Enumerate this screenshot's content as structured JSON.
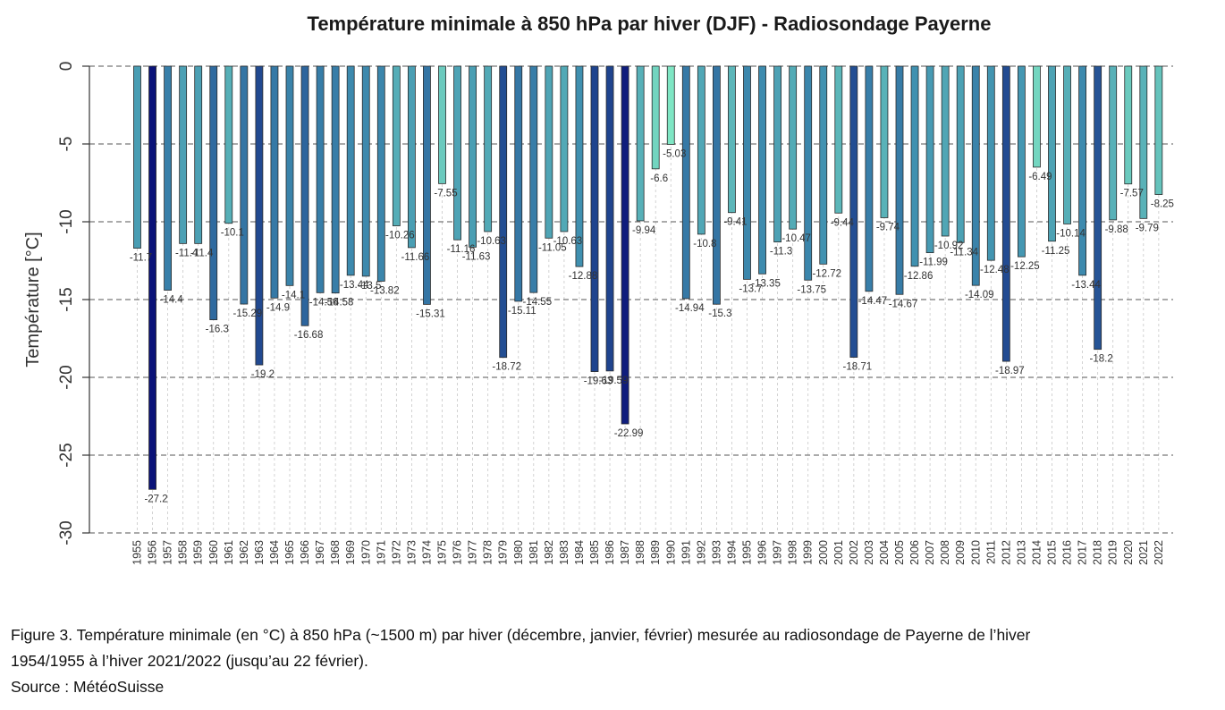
{
  "caption": {
    "line1": "Figure 3. Température minimale (en °C) à 850 hPa (~1500 m) par hiver (décembre, janvier, février) mesurée au radiosondage de Payerne de l’hiver",
    "line2": "1954/1955 à l’hiver 2021/2022 (jusqu’au 22 février).",
    "source": "Source : MétéoSuisse"
  },
  "chart_data": {
    "type": "bar",
    "title": "Température minimale à 850 hPa par hiver (DJF) - Radiosondage Payerne",
    "xlabel": "",
    "ylabel": "Température [°C]",
    "ylim": [
      -30,
      0
    ],
    "yticks": [
      0,
      -5,
      -10,
      -15,
      -20,
      -25,
      -30
    ],
    "grid": "dashed horizontal at every 5 °C, dotted vertical per bar",
    "colors": {
      "warm": "#7fe6c4",
      "mid": "#3f8fb0",
      "cold": "#0a1278"
    },
    "categories": [
      "1955",
      "1956",
      "1957",
      "1958",
      "1959",
      "1960",
      "1961",
      "1962",
      "1963",
      "1964",
      "1965",
      "1966",
      "1967",
      "1968",
      "1969",
      "1970",
      "1971",
      "1972",
      "1973",
      "1974",
      "1975",
      "1976",
      "1977",
      "1978",
      "1979",
      "1980",
      "1981",
      "1982",
      "1983",
      "1984",
      "1985",
      "1986",
      "1987",
      "1988",
      "1989",
      "1990",
      "1991",
      "1992",
      "1993",
      "1994",
      "1995",
      "1996",
      "1997",
      "1998",
      "1999",
      "2000",
      "2001",
      "2002",
      "2003",
      "2004",
      "2005",
      "2006",
      "2007",
      "2008",
      "2009",
      "2010",
      "2011",
      "2012",
      "2013",
      "2014",
      "2015",
      "2016",
      "2017",
      "2018",
      "2019",
      "2020",
      "2021",
      "2022"
    ],
    "values": [
      -11.7,
      -27.2,
      -14.4,
      -11.4,
      -11.4,
      -16.3,
      -10.1,
      -15.29,
      -19.2,
      -14.9,
      -14.1,
      -16.68,
      -14.56,
      -14.58,
      -13.44,
      -13.5,
      -13.82,
      -10.26,
      -11.66,
      -15.31,
      -7.55,
      -11.16,
      -11.63,
      -10.63,
      -18.72,
      -15.11,
      -14.55,
      -11.05,
      -10.63,
      -12.88,
      -19.63,
      -19.59,
      -22.99,
      -9.94,
      -6.6,
      -5.03,
      -14.94,
      -10.8,
      -15.3,
      -9.41,
      -13.7,
      -13.35,
      -11.3,
      -10.47,
      -13.75,
      -12.72,
      -9.44,
      -18.71,
      -14.47,
      -9.74,
      -14.67,
      -12.86,
      -11.99,
      -10.92,
      -11.34,
      -14.09,
      -12.48,
      -18.97,
      -12.25,
      -6.49,
      -11.25,
      -10.14,
      -13.44,
      -18.2,
      -9.88,
      -7.57,
      -9.79,
      -8.25
    ],
    "labels": [
      "-11.7",
      "-27.2",
      "-14.4",
      "-11.4",
      "-11.4",
      "-16.3",
      "-10.1",
      "-15.29",
      "-19.2",
      "-14.9",
      "-14.1",
      "-16.68",
      "-14.56",
      "-14.58",
      "-13.44",
      "-13.5",
      "-13.82",
      "-10.26",
      "-11.66",
      "-15.31",
      "-7.55",
      "-11.16",
      "-11.63",
      "-10.63",
      "-18.72",
      "-15.11",
      "-14.55",
      "-11.05",
      "-10.63",
      "-12.88",
      "-19.63",
      "-19.59",
      "-22.99",
      "-9.94",
      "-6.6",
      "-5.03",
      "-14.94",
      "-10.8",
      "-15.3",
      "-9.41",
      "-13.7",
      "-13.35",
      "-11.3",
      "-10.47",
      "-13.75",
      "-12.72",
      "-9.44",
      "-18.71",
      "-14.47",
      "-9.74",
      "-14.67",
      "-12.86",
      "-11.99",
      "-10.92",
      "-11.34",
      "-14.09",
      "-12.48",
      "-18.97",
      "-12.25",
      "-6.49",
      "-11.25",
      "-10.14",
      "-13.44",
      "-18.2",
      "-9.88",
      "-7.57",
      "-9.79",
      "-8.25"
    ]
  }
}
